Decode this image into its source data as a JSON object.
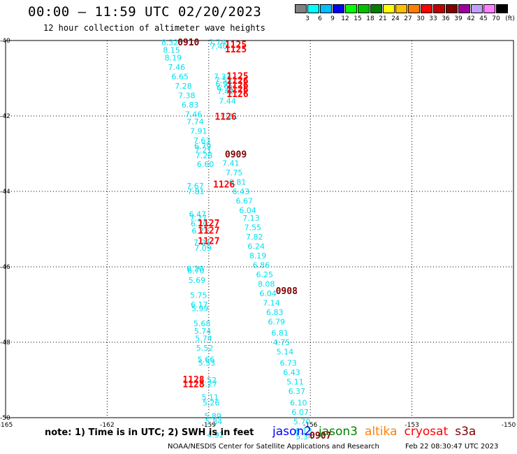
{
  "header": {
    "title": "00:00 – 11:59 UTC 02/20/2023",
    "subtitle": "12 hour collection of altimeter wave heights"
  },
  "colorbar": {
    "unit": "(ft)",
    "labels": [
      "3",
      "6",
      "9",
      "12",
      "15",
      "18",
      "21",
      "24",
      "27",
      "30",
      "33",
      "36",
      "39",
      "42",
      "45",
      "70"
    ],
    "colors": [
      "#808080",
      "#00ffff",
      "#00bfff",
      "#0000ff",
      "#00ff00",
      "#00c000",
      "#008000",
      "#ffff00",
      "#ffc000",
      "#ff8000",
      "#ff0000",
      "#c00000",
      "#800000",
      "#a000a0",
      "#c0a0ff",
      "#ff80ff",
      "#000000"
    ]
  },
  "footer": {
    "note": "note: 1) Time is in UTC; 2) SWH is in feet",
    "satellites": [
      {
        "name": "jason2",
        "color": "#0000ff"
      },
      {
        "name": "jason3",
        "color": "#008000"
      },
      {
        "name": "altika",
        "color": "#ff8000"
      },
      {
        "name": "cryosat",
        "color": "#ff0000"
      },
      {
        "name": "s3a",
        "color": "#800000"
      }
    ],
    "credit": "NOAA/NESDIS Center for Satellite Applications and Research",
    "generated": "Feb 22 08:30:47 UTC 2023"
  },
  "chart_data": {
    "type": "scatter",
    "title": "00:00 – 11:59 UTC 02/20/2023",
    "xlabel": "",
    "ylabel": "",
    "xlim": [
      -165,
      -150
    ],
    "ylim": [
      -50,
      -40
    ],
    "x_ticks": [
      "-165",
      "-162",
      "-159",
      "-156",
      "-153",
      "-150"
    ],
    "y_ticks": [
      "-40",
      "-42",
      "-44",
      "-46",
      "-48",
      "-50"
    ],
    "grid": true,
    "series": [
      {
        "color": "#00e0f0",
        "points": [
          {
            "x": -160.15,
            "y": -40.05,
            "label": "8.32"
          },
          {
            "x": -160.1,
            "y": -40.25,
            "label": "8.15"
          },
          {
            "x": -160.05,
            "y": -40.45,
            "label": "8.19"
          },
          {
            "x": -159.95,
            "y": -40.7,
            "label": "7.46"
          },
          {
            "x": -159.85,
            "y": -40.95,
            "label": "6.65"
          },
          {
            "x": -159.75,
            "y": -41.2,
            "label": "7.28"
          },
          {
            "x": -159.65,
            "y": -41.45,
            "label": "7.38"
          },
          {
            "x": -159.55,
            "y": -41.7,
            "label": "6.83"
          },
          {
            "x": -159.45,
            "y": -41.95,
            "label": "7.46"
          },
          {
            "x": -159.4,
            "y": -42.15,
            "label": "7.74"
          },
          {
            "x": -159.3,
            "y": -42.4,
            "label": "7.91"
          },
          {
            "x": -159.2,
            "y": -42.65,
            "label": "7.63"
          },
          {
            "x": -159.18,
            "y": -42.8,
            "label": "6.79"
          },
          {
            "x": -159.16,
            "y": -42.9,
            "label": "7.21"
          },
          {
            "x": -159.14,
            "y": -43.05,
            "label": "7.28"
          },
          {
            "x": -159.1,
            "y": -43.28,
            "label": "6.60"
          },
          {
            "x": -159.4,
            "y": -43.85,
            "label": "7.67"
          },
          {
            "x": -159.38,
            "y": -44.0,
            "label": "7.81"
          },
          {
            "x": -159.33,
            "y": -44.6,
            "label": "6.47"
          },
          {
            "x": -159.31,
            "y": -44.7,
            "label": "7.27"
          },
          {
            "x": -159.28,
            "y": -44.85,
            "label": "6.20"
          },
          {
            "x": -159.25,
            "y": -45.05,
            "label": "6.73"
          },
          {
            "x": -159.2,
            "y": -45.35,
            "label": "7.21"
          },
          {
            "x": -159.17,
            "y": -45.5,
            "label": "7.09"
          },
          {
            "x": -159.4,
            "y": -46.05,
            "label": "6.20"
          },
          {
            "x": -159.38,
            "y": -46.1,
            "label": "6.70"
          },
          {
            "x": -159.35,
            "y": -46.35,
            "label": "5.69"
          },
          {
            "x": -159.3,
            "y": -46.75,
            "label": "5.75"
          },
          {
            "x": -159.28,
            "y": -47.0,
            "label": "6.17"
          },
          {
            "x": -159.26,
            "y": -47.1,
            "label": "5.99"
          },
          {
            "x": -159.2,
            "y": -47.5,
            "label": "5.68"
          },
          {
            "x": -159.18,
            "y": -47.7,
            "label": "5.74"
          },
          {
            "x": -159.15,
            "y": -47.9,
            "label": "5.74"
          },
          {
            "x": -159.12,
            "y": -48.15,
            "label": "5.52"
          },
          {
            "x": -159.08,
            "y": -48.45,
            "label": "5.66"
          },
          {
            "x": -159.06,
            "y": -48.55,
            "label": "5.53"
          },
          {
            "x": -159.02,
            "y": -49.0,
            "label": "5.52"
          },
          {
            "x": -159.0,
            "y": -49.1,
            "label": "5.27"
          },
          {
            "x": -158.96,
            "y": -49.45,
            "label": "5.11"
          },
          {
            "x": -158.93,
            "y": -49.6,
            "label": "5.26"
          },
          {
            "x": -158.88,
            "y": -49.95,
            "label": "5.89"
          },
          {
            "x": -158.85,
            "y": -50.1,
            "label": "5.84"
          },
          {
            "x": -158.8,
            "y": -50.45,
            "label": "4.92"
          },
          {
            "x": -158.75,
            "y": -40.05,
            "label": "7.74"
          },
          {
            "x": -158.7,
            "y": -40.15,
            "label": "7.40"
          },
          {
            "x": -158.6,
            "y": -40.95,
            "label": "7.33"
          },
          {
            "x": -158.57,
            "y": -41.05,
            "label": "7.55"
          },
          {
            "x": -158.55,
            "y": -41.15,
            "label": "6.91"
          },
          {
            "x": -158.52,
            "y": -41.25,
            "label": "6.91"
          },
          {
            "x": -158.5,
            "y": -41.35,
            "label": "7.42"
          },
          {
            "x": -158.45,
            "y": -41.6,
            "label": "7.44"
          },
          {
            "x": -158.4,
            "y": -42.0,
            "label": "7.21"
          },
          {
            "x": -158.35,
            "y": -43.25,
            "label": "7.41"
          },
          {
            "x": -158.25,
            "y": -43.5,
            "label": "7.75"
          },
          {
            "x": -158.15,
            "y": -43.75,
            "label": "6.81"
          },
          {
            "x": -158.05,
            "y": -44.0,
            "label": "6.43"
          },
          {
            "x": -157.95,
            "y": -44.25,
            "label": "6.67"
          },
          {
            "x": -157.85,
            "y": -44.5,
            "label": "6.04"
          },
          {
            "x": -157.75,
            "y": -44.7,
            "label": "7.13"
          },
          {
            "x": -157.7,
            "y": -44.95,
            "label": "7.55"
          },
          {
            "x": -157.65,
            "y": -45.2,
            "label": "7.82"
          },
          {
            "x": -157.6,
            "y": -45.45,
            "label": "6.24"
          },
          {
            "x": -157.55,
            "y": -45.7,
            "label": "8.19"
          },
          {
            "x": -157.45,
            "y": -45.95,
            "label": "6.86"
          },
          {
            "x": -157.35,
            "y": -46.2,
            "label": "6.25"
          },
          {
            "x": -157.3,
            "y": -46.45,
            "label": "8.08"
          },
          {
            "x": -157.25,
            "y": -46.7,
            "label": "6.04"
          },
          {
            "x": -157.15,
            "y": -46.95,
            "label": "7.14"
          },
          {
            "x": -157.05,
            "y": -47.2,
            "label": "6.83"
          },
          {
            "x": -157.0,
            "y": -47.45,
            "label": "6.79"
          },
          {
            "x": -156.9,
            "y": -47.75,
            "label": "6.81"
          },
          {
            "x": -156.85,
            "y": -48.0,
            "label": "4.75"
          },
          {
            "x": -156.75,
            "y": -48.25,
            "label": "5.14"
          },
          {
            "x": -156.65,
            "y": -48.55,
            "label": "6.73"
          },
          {
            "x": -156.55,
            "y": -48.8,
            "label": "6.43"
          },
          {
            "x": -156.45,
            "y": -49.05,
            "label": "5.11"
          },
          {
            "x": -156.4,
            "y": -49.3,
            "label": "6.37"
          },
          {
            "x": -156.35,
            "y": -49.6,
            "label": "6.10"
          },
          {
            "x": -156.3,
            "y": -49.85,
            "label": "6.07"
          },
          {
            "x": -156.25,
            "y": -50.1,
            "label": "5.70"
          },
          {
            "x": -156.2,
            "y": -50.35,
            "label": "6.13"
          },
          {
            "x": -156.18,
            "y": -50.5,
            "label": "5.34"
          }
        ]
      },
      {
        "color": "#800000",
        "points": [
          {
            "x": -159.6,
            "y": -40.06,
            "label": "0910"
          },
          {
            "x": -158.2,
            "y": -43.03,
            "label": "0909"
          },
          {
            "x": -156.7,
            "y": -46.65,
            "label": "0908"
          },
          {
            "x": -155.7,
            "y": -50.48,
            "label": "0907"
          }
        ]
      },
      {
        "color": "#ff0000",
        "points": [
          {
            "x": -158.2,
            "y": -40.12,
            "label": "1125"
          },
          {
            "x": -158.2,
            "y": -40.24,
            "label": "1125"
          },
          {
            "x": -158.15,
            "y": -40.95,
            "label": "1125"
          },
          {
            "x": -158.15,
            "y": -41.07,
            "label": "1126"
          },
          {
            "x": -158.15,
            "y": -41.19,
            "label": "1126"
          },
          {
            "x": -158.15,
            "y": -41.31,
            "label": "1126"
          },
          {
            "x": -158.15,
            "y": -41.43,
            "label": "1126"
          },
          {
            "x": -158.5,
            "y": -42.03,
            "label": "1126"
          },
          {
            "x": -158.55,
            "y": -43.82,
            "label": "1126"
          },
          {
            "x": -159.0,
            "y": -44.85,
            "label": "1127"
          },
          {
            "x": -159.0,
            "y": -45.05,
            "label": "1127"
          },
          {
            "x": -159.0,
            "y": -45.32,
            "label": "1127"
          },
          {
            "x": -159.45,
            "y": -49.0,
            "label": "1128"
          },
          {
            "x": -159.45,
            "y": -49.12,
            "label": "1128"
          }
        ]
      }
    ]
  }
}
